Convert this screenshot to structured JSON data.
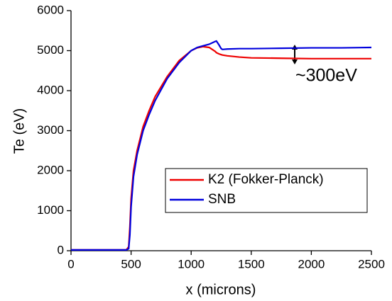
{
  "chart_data": {
    "type": "line",
    "x_label": "x (microns)",
    "y_label": "Te (eV)",
    "annotation": "~300eV",
    "xlim": [
      0,
      2500
    ],
    "xticks": [
      0,
      500,
      1000,
      1500,
      2000,
      2500
    ],
    "ylim": [
      0,
      6000
    ],
    "yticks": [
      0,
      1000,
      2000,
      3000,
      4000,
      5000,
      6000
    ],
    "legend": "lower right",
    "x": [
      0,
      200,
      400,
      460,
      480,
      490,
      500,
      520,
      550,
      600,
      650,
      700,
      800,
      900,
      1000,
      1050,
      1100,
      1150,
      1200,
      1210,
      1230,
      1250,
      1260,
      1300,
      1400,
      1500,
      1750,
      2000,
      2250,
      2500
    ],
    "series": [
      {
        "name": "K2 (Fokker-Planck)",
        "color": "#ee0000",
        "values": [
          20,
          20,
          20,
          20,
          100,
          600,
          1300,
          2000,
          2500,
          3100,
          3500,
          3850,
          4350,
          4750,
          5000,
          5070,
          5100,
          5080,
          4980,
          4950,
          4920,
          4900,
          4890,
          4870,
          4840,
          4820,
          4810,
          4800,
          4800,
          4800
        ]
      },
      {
        "name": "SNB",
        "color": "#0000dd",
        "values": [
          20,
          20,
          20,
          20,
          50,
          400,
          1100,
          1850,
          2400,
          3000,
          3400,
          3750,
          4300,
          4700,
          5000,
          5080,
          5120,
          5160,
          5230,
          5240,
          5150,
          5050,
          5030,
          5040,
          5050,
          5050,
          5060,
          5070,
          5070,
          5080
        ]
      }
    ]
  }
}
